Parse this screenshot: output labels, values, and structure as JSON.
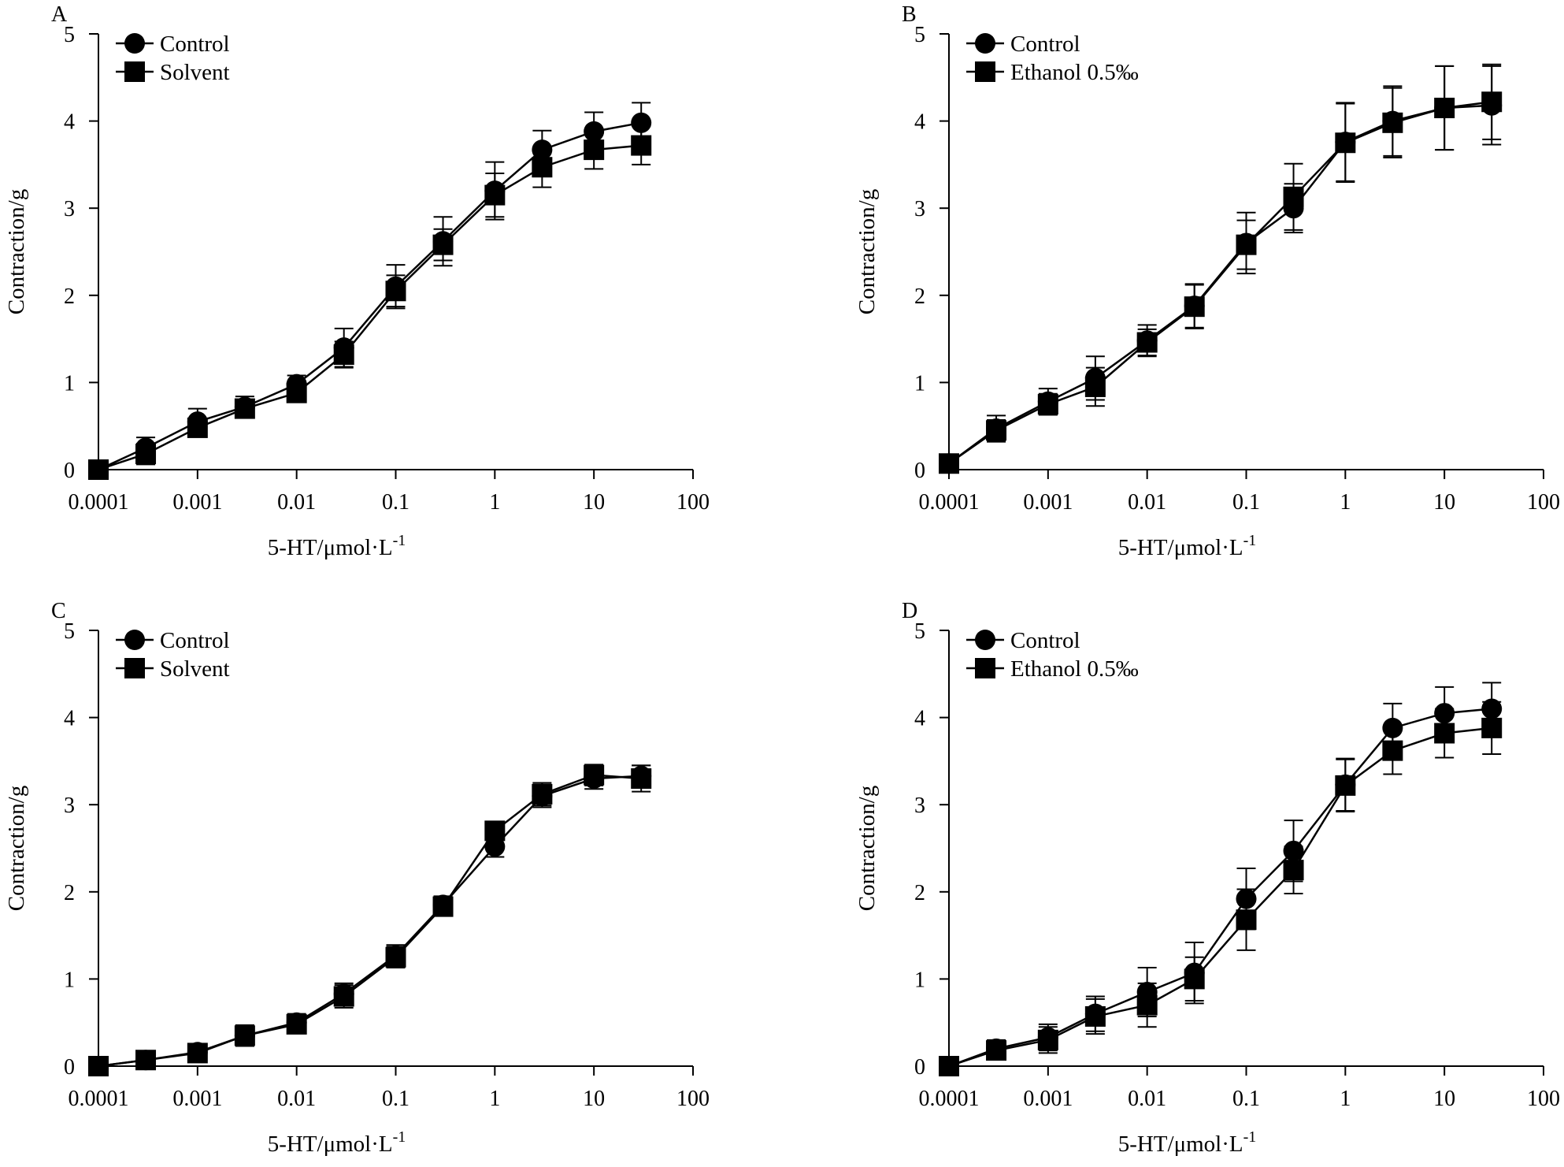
{
  "figure": {
    "line_color": "#000000",
    "background": "#ffffff",
    "marker_icons": [
      "circle-marker-icon",
      "square-marker-icon"
    ]
  },
  "chart_data": [
    {
      "type": "line",
      "panel": "A",
      "xscale": "log",
      "xlabel": "5-HT/μmol·L",
      "xlabel_superscript": "-1",
      "ylabel": "Contraction/g",
      "xticks": [
        "0.0001",
        "0.001",
        "0.01",
        "0.1",
        "1",
        "10",
        "100"
      ],
      "xtick_values": [
        0.0001,
        0.001,
        0.01,
        0.1,
        1,
        10,
        100
      ],
      "yticks": [
        "0",
        "1",
        "2",
        "3",
        "4",
        "5"
      ],
      "ylim": [
        0,
        5
      ],
      "xlim": [
        0.0001,
        100
      ],
      "legend_position": "top-left",
      "x": [
        0.0001,
        0.0003,
        0.001,
        0.003,
        0.01,
        0.03,
        0.1,
        0.3,
        1,
        3,
        10,
        30
      ],
      "series": [
        {
          "name": "Control",
          "marker": "circle",
          "values": [
            0.0,
            0.25,
            0.55,
            0.72,
            0.98,
            1.4,
            2.1,
            2.62,
            3.2,
            3.67,
            3.88,
            3.98
          ],
          "errors": [
            0.0,
            0.12,
            0.15,
            0.12,
            0.1,
            0.22,
            0.25,
            0.28,
            0.33,
            0.22,
            0.22,
            0.23
          ]
        },
        {
          "name": "Solvent",
          "marker": "square",
          "values": [
            0.0,
            0.18,
            0.48,
            0.7,
            0.88,
            1.32,
            2.05,
            2.58,
            3.15,
            3.47,
            3.67,
            3.72
          ],
          "errors": [
            0.0,
            0.12,
            0.1,
            0.1,
            0.08,
            0.15,
            0.18,
            0.18,
            0.25,
            0.23,
            0.22,
            0.22
          ]
        }
      ]
    },
    {
      "type": "line",
      "panel": "B",
      "xscale": "log",
      "xlabel": "5-HT/μmol·L",
      "xlabel_superscript": "-1",
      "ylabel": "Contraction/g",
      "xticks": [
        "0.0001",
        "0.001",
        "0.01",
        "0.1",
        "1",
        "10",
        "100"
      ],
      "xtick_values": [
        0.0001,
        0.001,
        0.01,
        0.1,
        1,
        10,
        100
      ],
      "yticks": [
        "0",
        "1",
        "2",
        "3",
        "4",
        "5"
      ],
      "ylim": [
        0,
        5
      ],
      "xlim": [
        0.0001,
        100
      ],
      "legend_position": "top-left",
      "x": [
        0.0001,
        0.0003,
        0.001,
        0.003,
        0.01,
        0.03,
        0.1,
        0.3,
        1,
        3,
        10,
        30
      ],
      "series": [
        {
          "name": "Control",
          "marker": "circle",
          "values": [
            0.07,
            0.47,
            0.78,
            1.05,
            1.48,
            1.88,
            2.6,
            3.0,
            3.76,
            4.0,
            4.15,
            4.18
          ],
          "errors": [
            0.0,
            0.15,
            0.15,
            0.25,
            0.18,
            0.25,
            0.35,
            0.28,
            0.45,
            0.4,
            0.48,
            0.45
          ]
        },
        {
          "name": "Ethanol 0.5‰",
          "marker": "square",
          "values": [
            0.07,
            0.45,
            0.75,
            0.95,
            1.46,
            1.87,
            2.58,
            3.13,
            3.75,
            3.98,
            4.15,
            4.22
          ],
          "errors": [
            0.0,
            0.12,
            0.12,
            0.22,
            0.15,
            0.25,
            0.28,
            0.38,
            0.45,
            0.4,
            0.48,
            0.43
          ]
        }
      ]
    },
    {
      "type": "line",
      "panel": "C",
      "xscale": "log",
      "xlabel": "5-HT/μmol·L",
      "xlabel_superscript": "-1",
      "ylabel": "Contraction/g",
      "xticks": [
        "0.0001",
        "0.001",
        "0.01",
        "0.1",
        "1",
        "10",
        "100"
      ],
      "xtick_values": [
        0.0001,
        0.001,
        0.01,
        0.1,
        1,
        10,
        100
      ],
      "yticks": [
        "0",
        "1",
        "2",
        "3",
        "4",
        "5"
      ],
      "ylim": [
        0,
        5
      ],
      "xlim": [
        0.0001,
        100
      ],
      "legend_position": "top-left",
      "x": [
        0.0001,
        0.0003,
        0.001,
        0.003,
        0.01,
        0.03,
        0.1,
        0.3,
        1,
        3,
        10,
        30
      ],
      "series": [
        {
          "name": "Control",
          "marker": "circle",
          "values": [
            0.0,
            0.07,
            0.16,
            0.35,
            0.5,
            0.83,
            1.27,
            1.85,
            2.52,
            3.1,
            3.3,
            3.33
          ],
          "errors": [
            0.0,
            0.05,
            0.05,
            0.12,
            0.1,
            0.12,
            0.12,
            0.1,
            0.12,
            0.13,
            0.12,
            0.12
          ]
        },
        {
          "name": "Solvent",
          "marker": "square",
          "values": [
            0.0,
            0.07,
            0.15,
            0.35,
            0.48,
            0.8,
            1.25,
            1.83,
            2.7,
            3.12,
            3.34,
            3.3
          ],
          "errors": [
            0.0,
            0.05,
            0.05,
            0.12,
            0.1,
            0.13,
            0.12,
            0.1,
            0.1,
            0.13,
            0.12,
            0.15
          ]
        }
      ]
    },
    {
      "type": "line",
      "panel": "D",
      "xscale": "log",
      "xlabel": "5-HT/μmol·L",
      "xlabel_superscript": "-1",
      "ylabel": "Contraction/g",
      "xticks": [
        "0.0001",
        "0.001",
        "0.01",
        "0.1",
        "1",
        "10",
        "100"
      ],
      "xtick_values": [
        0.0001,
        0.001,
        0.01,
        0.1,
        1,
        10,
        100
      ],
      "yticks": [
        "0",
        "1",
        "2",
        "3",
        "4",
        "5"
      ],
      "ylim": [
        0,
        5
      ],
      "xlim": [
        0.0001,
        100
      ],
      "legend_position": "top-left",
      "x": [
        0.0001,
        0.0003,
        0.001,
        0.003,
        0.01,
        0.03,
        0.1,
        0.3,
        1,
        3,
        10,
        30
      ],
      "series": [
        {
          "name": "Control",
          "marker": "circle",
          "values": [
            0.0,
            0.2,
            0.33,
            0.6,
            0.85,
            1.07,
            1.92,
            2.47,
            3.23,
            3.88,
            4.05,
            4.1
          ],
          "errors": [
            0.0,
            0.1,
            0.15,
            0.2,
            0.28,
            0.35,
            0.35,
            0.35,
            0.3,
            0.28,
            0.3,
            0.3
          ]
        },
        {
          "name": "Ethanol 0.5‰",
          "marker": "square",
          "values": [
            0.0,
            0.18,
            0.3,
            0.57,
            0.7,
            1.0,
            1.68,
            2.25,
            3.22,
            3.62,
            3.82,
            3.88
          ],
          "errors": [
            0.0,
            0.1,
            0.15,
            0.2,
            0.25,
            0.25,
            0.35,
            0.27,
            0.3,
            0.27,
            0.28,
            0.3
          ]
        }
      ]
    }
  ]
}
